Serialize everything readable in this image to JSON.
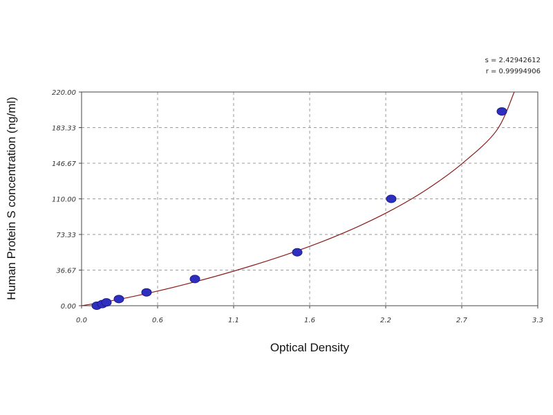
{
  "chart_data": {
    "type": "scatter",
    "title": "",
    "xlabel": "Optical Density",
    "ylabel": "Human Protein S concentration (ng/ml)",
    "xlim": [
      0.0,
      3.3
    ],
    "ylim": [
      0.0,
      220.0
    ],
    "x_ticks": [
      "0.0",
      "0.6",
      "1.1",
      "1.6",
      "2.2",
      "2.7",
      "3.3"
    ],
    "y_ticks": [
      "0.00",
      "36.67",
      "73.33",
      "110.00",
      "146.67",
      "183.33",
      "220.00"
    ],
    "grid": true,
    "stats": {
      "s_label": "s = 2.42942612",
      "r_label": "r = 0.99994906"
    },
    "colors": {
      "points": "#2f2fbf",
      "curve": "#8b1a1a",
      "grid": "#9a9a9a",
      "axis": "#444444"
    },
    "series": [
      {
        "type": "scatter",
        "points": [
          {
            "x": 0.11,
            "y": 0.0
          },
          {
            "x": 0.15,
            "y": 1.72
          },
          {
            "x": 0.18,
            "y": 3.44
          },
          {
            "x": 0.27,
            "y": 6.88
          },
          {
            "x": 0.47,
            "y": 13.75
          },
          {
            "x": 0.82,
            "y": 27.5
          },
          {
            "x": 1.56,
            "y": 55.0
          },
          {
            "x": 2.24,
            "y": 110.0
          },
          {
            "x": 3.04,
            "y": 200.0
          }
        ]
      }
    ],
    "fit_curve": {
      "type": "line",
      "points": [
        {
          "x": 0.0,
          "y": 0.0
        },
        {
          "x": 0.25,
          "y": 6.0
        },
        {
          "x": 0.5,
          "y": 13.5
        },
        {
          "x": 0.75,
          "y": 22.0
        },
        {
          "x": 1.0,
          "y": 31.5
        },
        {
          "x": 1.25,
          "y": 42.0
        },
        {
          "x": 1.5,
          "y": 53.5
        },
        {
          "x": 1.75,
          "y": 66.5
        },
        {
          "x": 2.0,
          "y": 81.5
        },
        {
          "x": 2.25,
          "y": 99.0
        },
        {
          "x": 2.5,
          "y": 120.0
        },
        {
          "x": 2.75,
          "y": 146.0
        },
        {
          "x": 3.0,
          "y": 180.0
        },
        {
          "x": 3.13,
          "y": 220.0
        }
      ]
    }
  }
}
